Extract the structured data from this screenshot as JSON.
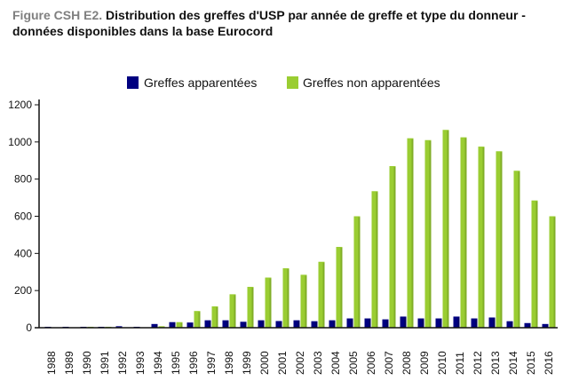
{
  "figure": {
    "prefix": "Figure CSH E2.",
    "title_line1": "Distribution des greffes d'USP par année de greffe et type du donneur -",
    "title_line2": "données disponibles dans la base Eurocord"
  },
  "chart_data": {
    "type": "bar",
    "title": "Figure CSH E2. Distribution des greffes d'USP par année de greffe et type du donneur - données disponibles dans la base Eurocord",
    "xlabel": "",
    "ylabel": "",
    "ylim": [
      0,
      1200
    ],
    "yticks": [
      0,
      200,
      400,
      600,
      800,
      1000,
      1200
    ],
    "grid": false,
    "legend_position": "top-center",
    "categories": [
      "1988",
      "1989",
      "1990",
      "1991",
      "1992",
      "1993",
      "1994",
      "1995",
      "1996",
      "1997",
      "1998",
      "1999",
      "2000",
      "2001",
      "2002",
      "2003",
      "2004",
      "2005",
      "2006",
      "2007",
      "2008",
      "2009",
      "2010",
      "2011",
      "2012",
      "2013",
      "2014",
      "2015",
      "2016"
    ],
    "series": [
      {
        "name": "Greffes apparentées",
        "color": "#000080",
        "values": [
          5,
          5,
          5,
          5,
          8,
          5,
          20,
          30,
          28,
          40,
          40,
          32,
          40,
          36,
          40,
          35,
          40,
          50,
          50,
          45,
          60,
          50,
          50,
          60,
          50,
          55,
          35,
          25,
          20
        ]
      },
      {
        "name": "Greffes non apparentées",
        "color": "#9ACD32",
        "values": [
          0,
          0,
          5,
          5,
          0,
          0,
          8,
          30,
          90,
          115,
          180,
          220,
          270,
          320,
          285,
          355,
          435,
          600,
          735,
          870,
          1020,
          1010,
          1065,
          1025,
          975,
          950,
          845,
          685,
          600
        ]
      }
    ]
  }
}
